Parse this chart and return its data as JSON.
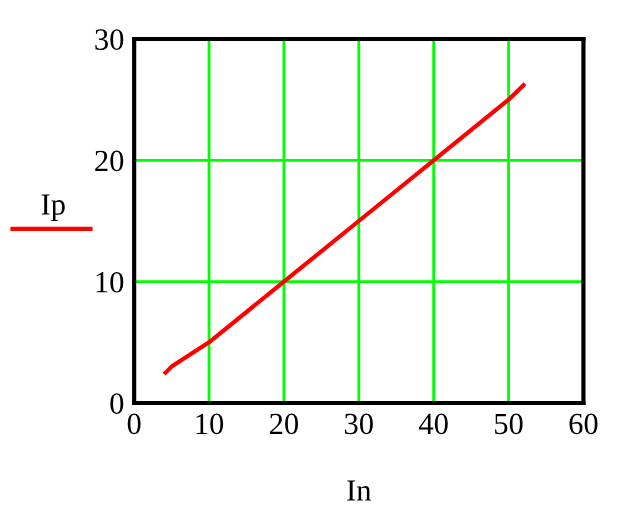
{
  "chart_data": {
    "type": "line",
    "xlabel": "In",
    "legend": "left",
    "grid": true,
    "series": [
      {
        "name": "Ip",
        "color": "#ff0000",
        "x": [
          4.2,
          5,
          10,
          20,
          30,
          40,
          50,
          52
        ],
        "values": [
          2.5,
          3,
          5,
          10,
          15,
          20,
          25,
          26.2
        ]
      }
    ],
    "xlim": [
      0,
      60
    ],
    "ylim": [
      0,
      30
    ],
    "xticks": [
      0,
      10,
      20,
      30,
      40,
      50,
      60
    ],
    "yticks": [
      0,
      10,
      20,
      30
    ],
    "line_style": "solid"
  }
}
